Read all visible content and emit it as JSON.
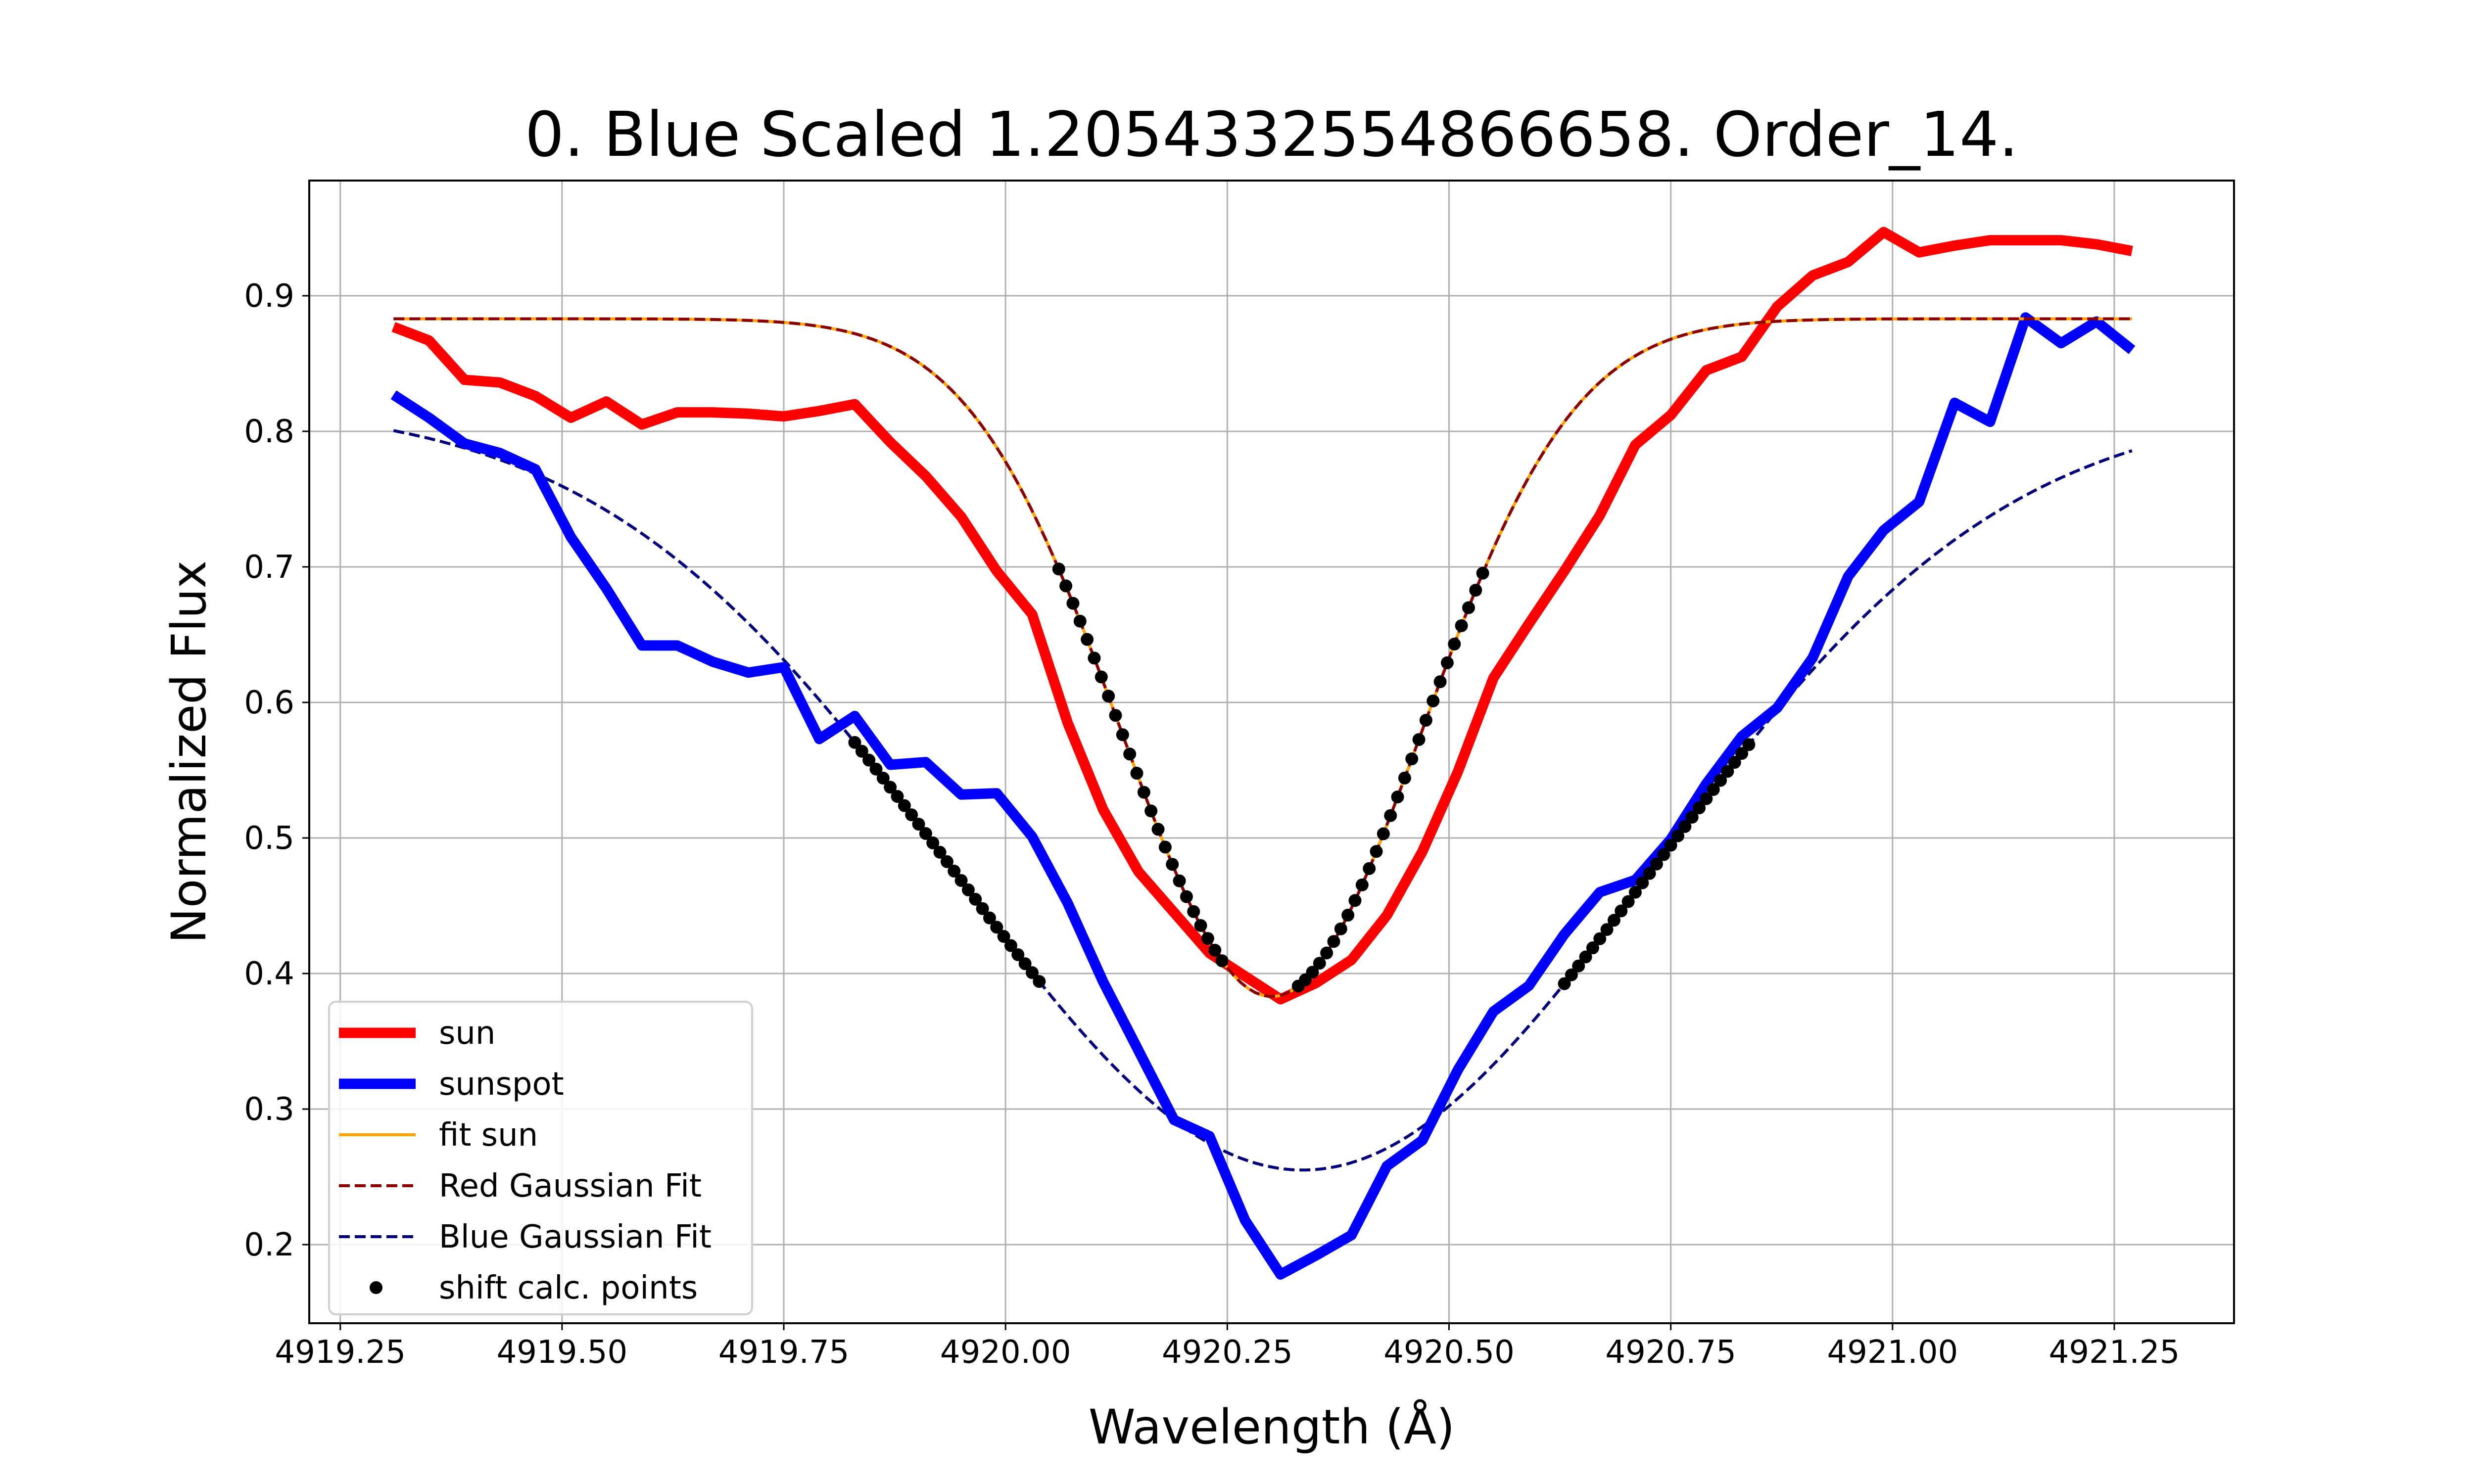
{
  "chart_data": {
    "type": "line",
    "title": "0. Blue Scaled 1.2054332554866658. Order_14.",
    "xlabel": "Wavelength (Å)",
    "ylabel": "Normalized Flux",
    "xlim": [
      4919.215,
      4921.385
    ],
    "ylim": [
      0.142,
      0.985
    ],
    "grid": true,
    "legend_position": "lower-left",
    "xticks": [
      {
        "value": 4919.25,
        "label": "4919.25"
      },
      {
        "value": 4919.5,
        "label": "4919.50"
      },
      {
        "value": 4919.75,
        "label": "4919.75"
      },
      {
        "value": 4920.0,
        "label": "4920.00"
      },
      {
        "value": 4920.25,
        "label": "4920.25"
      },
      {
        "value": 4920.5,
        "label": "4920.50"
      },
      {
        "value": 4920.75,
        "label": "4920.75"
      },
      {
        "value": 4921.0,
        "label": "4921.00"
      },
      {
        "value": 4921.25,
        "label": "4921.25"
      }
    ],
    "yticks": [
      {
        "value": 0.2,
        "label": "0.2"
      },
      {
        "value": 0.3,
        "label": "0.3"
      },
      {
        "value": 0.4,
        "label": "0.4"
      },
      {
        "value": 0.5,
        "label": "0.5"
      },
      {
        "value": 0.6,
        "label": "0.6"
      },
      {
        "value": 0.7,
        "label": "0.7"
      },
      {
        "value": 0.8,
        "label": "0.8"
      },
      {
        "value": 0.9,
        "label": "0.9"
      }
    ],
    "series": [
      {
        "name": "sun",
        "style": "line-thick",
        "color": "#ff0000",
        "x": [
          4919.31,
          4919.35,
          4919.39,
          4919.43,
          4919.47,
          4919.51,
          4919.55,
          4919.59,
          4919.63,
          4919.67,
          4919.71,
          4919.75,
          4919.79,
          4919.83,
          4919.87,
          4919.91,
          4919.95,
          4919.99,
          4920.03,
          4920.07,
          4920.11,
          4920.15,
          4920.19,
          4920.23,
          4920.27,
          4920.31,
          4920.35,
          4920.39,
          4920.43,
          4920.47,
          4920.51,
          4920.55,
          4920.59,
          4920.63,
          4920.67,
          4920.71,
          4920.75,
          4920.79,
          4920.83,
          4920.87,
          4920.91,
          4920.95,
          4920.99,
          4921.03,
          4921.07,
          4921.11,
          4921.15,
          4921.19,
          4921.23,
          4921.27
        ],
        "y": [
          0.877,
          0.867,
          0.838,
          0.836,
          0.826,
          0.81,
          0.822,
          0.805,
          0.814,
          0.814,
          0.813,
          0.811,
          0.815,
          0.82,
          0.792,
          0.767,
          0.737,
          0.697,
          0.665,
          0.585,
          0.521,
          0.475,
          0.445,
          0.415,
          0.398,
          0.381,
          0.393,
          0.41,
          0.443,
          0.49,
          0.549,
          0.618,
          0.658,
          0.697,
          0.738,
          0.79,
          0.812,
          0.845,
          0.855,
          0.892,
          0.915,
          0.925,
          0.947,
          0.932,
          0.937,
          0.941,
          0.941,
          0.941,
          0.938,
          0.933
        ]
      },
      {
        "name": "sunspot",
        "style": "line-thick",
        "color": "#0000ff",
        "x": [
          4919.31,
          4919.35,
          4919.39,
          4919.43,
          4919.47,
          4919.51,
          4919.55,
          4919.59,
          4919.63,
          4919.67,
          4919.71,
          4919.75,
          4919.79,
          4919.83,
          4919.87,
          4919.91,
          4919.95,
          4919.99,
          4920.03,
          4920.07,
          4920.11,
          4920.15,
          4920.19,
          4920.23,
          4920.27,
          4920.31,
          4920.35,
          4920.39,
          4920.43,
          4920.47,
          4920.51,
          4920.55,
          4920.59,
          4920.63,
          4920.67,
          4920.71,
          4920.75,
          4920.79,
          4920.83,
          4920.87,
          4920.91,
          4920.95,
          4920.99,
          4921.03,
          4921.07,
          4921.11,
          4921.15,
          4921.19,
          4921.23,
          4921.27
        ],
        "y": [
          0.827,
          0.81,
          0.791,
          0.784,
          0.772,
          0.722,
          0.684,
          0.642,
          0.642,
          0.63,
          0.622,
          0.626,
          0.573,
          0.59,
          0.554,
          0.556,
          0.532,
          0.533,
          0.501,
          0.452,
          0.394,
          0.343,
          0.292,
          0.28,
          0.218,
          0.178,
          0.192,
          0.207,
          0.258,
          0.277,
          0.329,
          0.372,
          0.391,
          0.429,
          0.46,
          0.469,
          0.499,
          0.54,
          0.575,
          0.596,
          0.633,
          0.693,
          0.727,
          0.748,
          0.821,
          0.807,
          0.884,
          0.865,
          0.881,
          0.86
        ]
      },
      {
        "name": "fit sun",
        "style": "line-thin",
        "color": "#ffa500",
        "model": "gaussian",
        "x_range": [
          4919.31,
          4921.27
        ],
        "baseline": 0.883,
        "depth": 0.5,
        "center": 4920.3,
        "sigma": 0.17
      },
      {
        "name": "Red Gaussian Fit",
        "style": "dashed",
        "color": "#8b0000",
        "model": "gaussian",
        "x_range": [
          4919.31,
          4921.27
        ],
        "baseline": 0.883,
        "depth": 0.5,
        "center": 4920.3,
        "sigma": 0.17
      },
      {
        "name": "Blue Gaussian Fit",
        "style": "dashed",
        "color": "#00007f",
        "model": "gaussian",
        "x_range": [
          4919.31,
          4921.27
        ],
        "baseline": 0.82,
        "depth": 0.565,
        "center": 4920.335,
        "sigma": 0.395
      },
      {
        "name": "shift calc. points",
        "style": "dots",
        "color": "#000000",
        "segments": [
          {
            "curve": "Red Gaussian Fit",
            "from": 4920.06,
            "to": 4920.245,
            "step": 0.008
          },
          {
            "curve": "Red Gaussian Fit",
            "from": 4920.33,
            "to": 4920.54,
            "step": 0.008
          },
          {
            "curve": "Blue Gaussian Fit",
            "from": 4919.83,
            "to": 4920.04,
            "step": 0.008
          },
          {
            "curve": "Blue Gaussian Fit",
            "from": 4920.63,
            "to": 4920.84,
            "step": 0.008
          }
        ]
      }
    ]
  }
}
